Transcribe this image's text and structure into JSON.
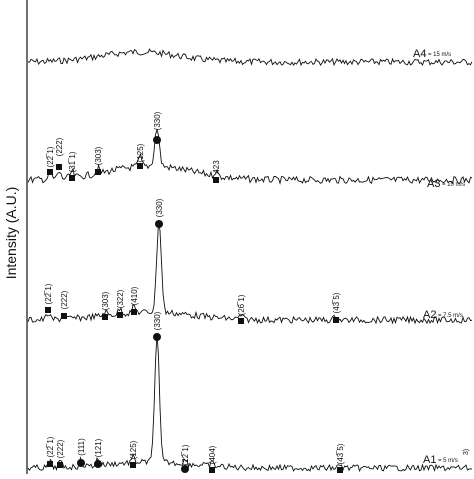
{
  "chart_data": {
    "type": "line",
    "ylabel": "Intensity (A.U.)",
    "xlabel": "",
    "grid": false,
    "legend": "none",
    "line_color": "#111111",
    "series": [
      {
        "label": "A4",
        "speed": "15 m/s",
        "peaks": [],
        "note": "broad amorphous hump, no sharp peaks"
      },
      {
        "label": "A3",
        "speed": "10 m/s",
        "peaks": [
          {
            "hkl": "(22̅ 1)",
            "marker": "square"
          },
          {
            "hkl": "(222)",
            "marker": "square"
          },
          {
            "hkl": "(31̅ 1)",
            "marker": "square"
          },
          {
            "hkl": "(303)",
            "marker": "square"
          },
          {
            "hkl": "(125)",
            "marker": "square"
          },
          {
            "hkl": "(330)",
            "marker": "circle"
          },
          {
            "hkl": "423",
            "marker": "square"
          }
        ]
      },
      {
        "label": "A2",
        "speed": "7.5 m/s",
        "peaks": [
          {
            "hkl": "(22̅ 1)",
            "marker": "square"
          },
          {
            "hkl": "(222)",
            "marker": "square"
          },
          {
            "hkl": "(303)",
            "marker": "square"
          },
          {
            "hkl": "(322)",
            "marker": "square"
          },
          {
            "hkl": "(410)",
            "marker": "square"
          },
          {
            "hkl": "(330)",
            "marker": "circle"
          },
          {
            "hkl": "(26̅ 1)",
            "marker": "square"
          },
          {
            "hkl": "(43̅ 5)",
            "marker": "square"
          }
        ]
      },
      {
        "label": "A1",
        "speed": "5 m/s",
        "peaks": [
          {
            "hkl": "(22̅ 1)",
            "marker": "square"
          },
          {
            "hkl": "(222)",
            "marker": "square"
          },
          {
            "hkl": "(111)",
            "marker": "circle"
          },
          {
            "hkl": "(121)",
            "marker": "circle"
          },
          {
            "hkl": "(125)",
            "marker": "square"
          },
          {
            "hkl": "(330)",
            "marker": "circle"
          },
          {
            "hkl": "(22̅ 1)",
            "marker": "circle"
          },
          {
            "hkl": "(404)",
            "marker": "square"
          },
          {
            "hkl": "(43̅ 5)",
            "marker": "square"
          }
        ]
      }
    ],
    "extra_labels": [
      "3)"
    ]
  }
}
